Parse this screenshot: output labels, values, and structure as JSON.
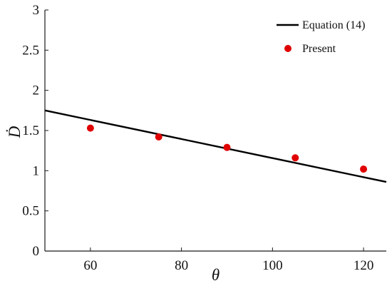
{
  "chart_data": {
    "type": "scatter",
    "xlabel": "θ",
    "ylabel": "Ḋ",
    "xlim": [
      50,
      125
    ],
    "ylim": [
      0,
      3
    ],
    "xticks": [
      60,
      80,
      100,
      120
    ],
    "xtick_labels": [
      "60",
      "80",
      "100",
      "120"
    ],
    "yticks": [
      0,
      0.5,
      1,
      1.5,
      2,
      2.5,
      3
    ],
    "ytick_labels": [
      "0",
      "0.5",
      "1",
      "1.5",
      "2",
      "2.5",
      "3"
    ],
    "grid": false,
    "legend_position": "top-right",
    "series": [
      {
        "name": "Equation (14)",
        "kind": "line",
        "color": "#000000",
        "x": [
          50,
          125
        ],
        "y": [
          1.75,
          0.86
        ]
      },
      {
        "name": "Present",
        "kind": "scatter",
        "color": "#e00000",
        "x": [
          60,
          75,
          90,
          105,
          120
        ],
        "y": [
          1.53,
          1.42,
          1.29,
          1.16,
          1.02
        ]
      }
    ]
  }
}
